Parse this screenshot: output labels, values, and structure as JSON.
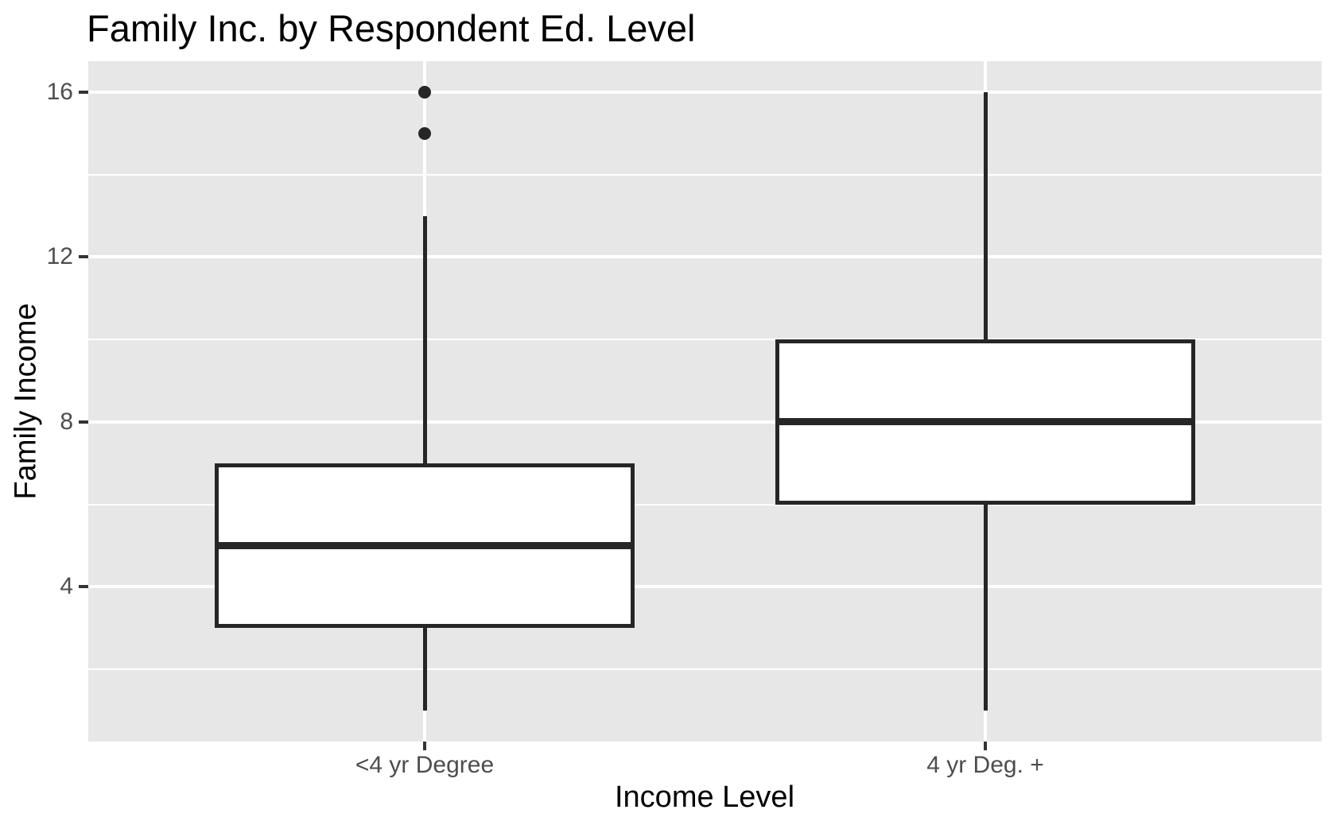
{
  "title": "Family Inc. by Respondent Ed. Level",
  "colors": {
    "background": "#FFFFFF",
    "panel_bg": "#E7E7E7",
    "grid": "#FFFFFF",
    "box_stroke": "#262626",
    "box_fill": "#FFFFFF",
    "tick_mark": "#333333",
    "axis_text": "#4D4D4D",
    "title_text": "#000000"
  },
  "chart_data": {
    "type": "boxplot",
    "title": "Family Inc. by Respondent Ed. Level",
    "xlabel": "Income Level",
    "ylabel": "Family Income",
    "categories": [
      "<4 yr Degree",
      "4 yr Deg. +"
    ],
    "series": [
      {
        "category": "<4 yr Degree",
        "whisker_low": 1,
        "q1": 3,
        "median": 5,
        "q3": 7,
        "whisker_high": 13,
        "outliers": [
          15,
          16
        ]
      },
      {
        "category": "4 yr Deg. +",
        "whisker_low": 1,
        "q1": 6,
        "median": 8,
        "q3": 10,
        "whisker_high": 16,
        "outliers": []
      }
    ],
    "ylim": [
      0.25,
      16.75
    ],
    "y_major_ticks": [
      16,
      12,
      8,
      4
    ],
    "y_minor_ticks": [
      14,
      10,
      6,
      2
    ],
    "grid": true,
    "legend": "none",
    "style": "ggplot2-grey-panel"
  }
}
